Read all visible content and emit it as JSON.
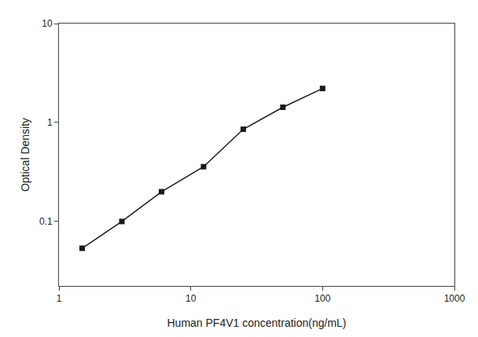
{
  "chart_data": {
    "type": "line",
    "x": [
      1.5,
      3.0,
      6.0,
      12.5,
      25.0,
      50.0,
      100.0
    ],
    "values": [
      0.053,
      0.099,
      0.198,
      0.355,
      0.85,
      1.42,
      2.2
    ],
    "xlabel": "Human PF4V1 concentration(ng/mL)",
    "ylabel": "Optical Density",
    "xlim": [
      1,
      1000
    ],
    "ylim": [
      0.022,
      10
    ],
    "xticks": [
      1,
      10,
      100,
      1000
    ],
    "yticks": [
      0.1,
      1,
      10
    ],
    "log": true,
    "grid": false,
    "color": "#1a1a1a",
    "marker": "square"
  }
}
